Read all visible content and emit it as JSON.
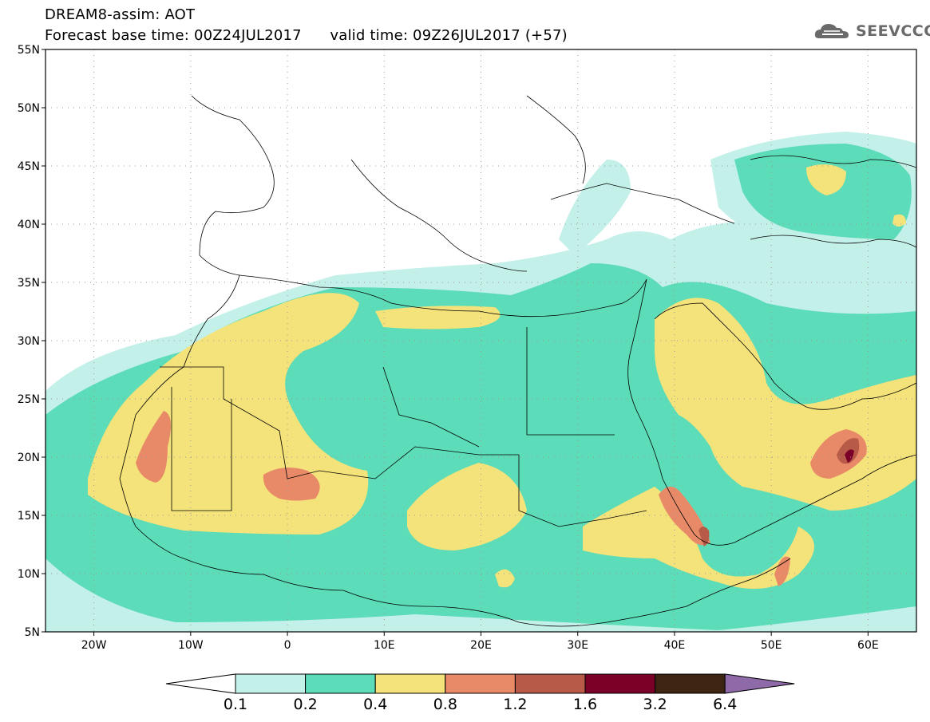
{
  "header": {
    "title_line1": "DREAM8-assim: AOT",
    "title_line2": "Forecast base time: 00Z24JUL2017      valid time: 09Z26JUL2017 (+57)"
  },
  "logo": {
    "text": "SEEVCCC",
    "icon": "cloud-logo-icon"
  },
  "map": {
    "lon_range": [
      -25,
      65
    ],
    "lat_range": [
      5,
      55
    ],
    "lat_labels": [
      "55N",
      "50N",
      "45N",
      "40N",
      "35N",
      "30N",
      "25N",
      "20N",
      "15N",
      "10N",
      "5N"
    ],
    "lon_labels": [
      "20W",
      "10W",
      "0",
      "10E",
      "20E",
      "30E",
      "40E",
      "50E",
      "60E"
    ],
    "grid": "dotted"
  },
  "colorbar": {
    "labels": [
      "0.1",
      "0.2",
      "0.4",
      "0.8",
      "1.2",
      "1.6",
      "3.2",
      "6.4"
    ],
    "colors": [
      "#ffffff",
      "#c4f0ea",
      "#5cdcb8",
      "#f4e27a",
      "#e88a68",
      "#b85a48",
      "#7a0028",
      "#3e2412",
      "#8e6aa8"
    ]
  }
}
